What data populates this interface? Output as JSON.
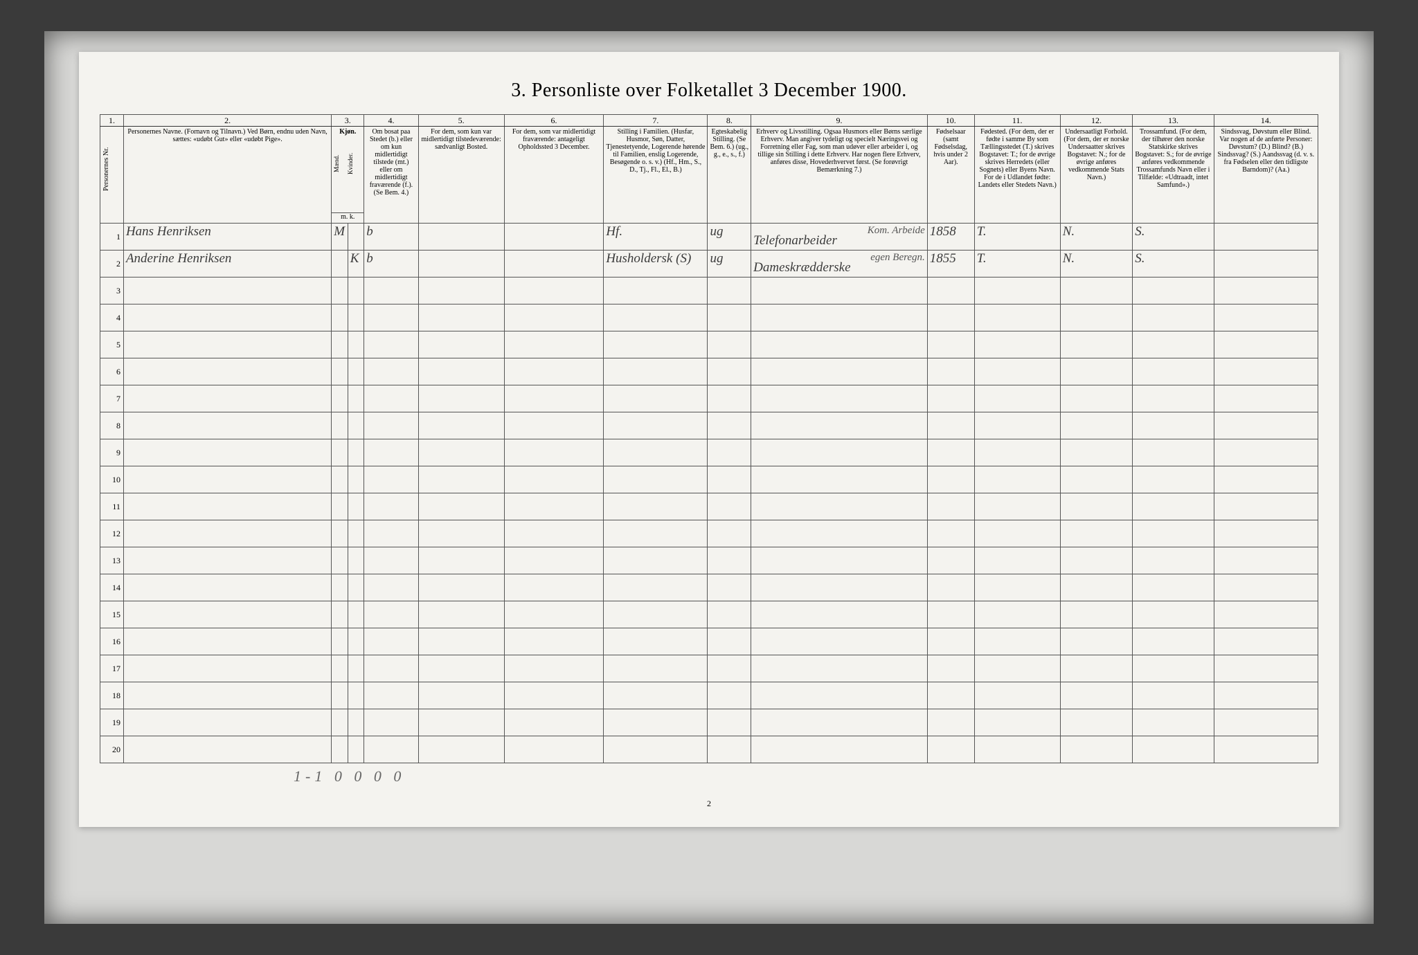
{
  "title": "3. Personliste over Folketallet 3 December 1900.",
  "columns": {
    "nums": [
      "1.",
      "2.",
      "3.",
      "4.",
      "5.",
      "6.",
      "7.",
      "8.",
      "9.",
      "10.",
      "11.",
      "12.",
      "13.",
      "14."
    ],
    "h1": "Personernes Nr.",
    "h2": "Personernes Navne.\n(Fornavn og Tilnavn.)\nVed Børn, endnu uden Navn, sættes: «udøbt Gut» eller «udøbt Pige».",
    "h3": "Kjøn.",
    "h3m": "Mænd.",
    "h3k": "Kvinder.",
    "h3mk": "m. k.",
    "h4": "Om bosat paa Stedet (b.) eller om kun midlertidigt tilstede (mt.) eller om midlertidigt fraværende (f.). (Se Bem. 4.)",
    "h5": "For dem, som kun var midlertidigt tilstedeværende:\nsædvanligt Bosted.",
    "h6": "For dem, som var midlertidigt fraværende:\nantageligt Opholdssted 3 December.",
    "h7": "Stilling i Familien.\n(Husfar, Husmor, Søn, Datter, Tjenestetyende, Logerende hørende til Familien, enslig Logerende, Besøgende o. s. v.)\n(Hf., Hm., S., D., Tj., Fl., El., B.)",
    "h8": "Egteskabelig Stilling.\n(Se Bem. 6.)\n(ug., g., e., s., f.)",
    "h9": "Erhverv og Livsstilling.\nOgsaa Husmors eller Børns særlige Erhverv. Man angiver tydeligt og specielt Næringsvei og Forretning eller Fag, som man udøver eller arbeider i, og tillige sin Stilling i dette Erhverv. Har nogen flere Erhverv, anføres disse, Hovederhvervet først.\n(Se forøvrigt Bemærkning 7.)",
    "h10": "Fødselsaar\n(samt Fødselsdag, hvis under 2 Aar).",
    "h11": "Fødested.\n(For dem, der er fødte i samme By som Tællingsstedet (T.) skrives Bogstavet: T.; for de øvrige skrives Herredets (eller Sognets) eller Byens Navn. For de i Udlandet fødte: Landets eller Stedets Navn.)",
    "h12": "Undersaatligt Forhold.\n(For dem, der er norske Undersaatter skrives Bogstavet: N.; for de øvrige anføres vedkommende Stats Navn.)",
    "h13": "Trossamfund.\n(For dem, der tilhører den norske Statskirke skrives Bogstavet: S.; for de øvrige anføres vedkommende Trossamfunds Navn eller i Tilfælde: «Udtraadt, intet Samfund».)",
    "h14": "Sindssvag, Døvstum eller Blind.\nVar nogen af de anførte Personer:\nDøvstum? (D.)\nBlind? (B.)\nSindssvag? (S.)\nAandssvag (d. v. s. fra Fødselen eller den tidligste Barndom)? (Aa.)"
  },
  "rows": [
    {
      "n": "1",
      "name": "Hans Henriksen",
      "sex_m": "M",
      "sex_k": "",
      "c4": "b",
      "c5": "",
      "c6": "",
      "c7": "Hf.",
      "c8": "ug",
      "c9": "Telefonarbeider",
      "c9sup": "Kom. Arbeide",
      "c10": "1858",
      "c11": "T.",
      "c12": "N.",
      "c13": "S.",
      "c14": ""
    },
    {
      "n": "2",
      "name": "Anderine Henriksen",
      "sex_m": "",
      "sex_k": "K",
      "c4": "b",
      "c5": "",
      "c6": "",
      "c7": "Husholdersk (S)",
      "c8": "ug",
      "c9": "Dameskrædderske",
      "c9sup": "egen Beregn.",
      "c10": "1855",
      "c11": "T.",
      "c12": "N.",
      "c13": "S.",
      "c14": ""
    }
  ],
  "empty_row_count": 18,
  "footer_tallies": "1-1   0 0     0 0",
  "footer_page": "2",
  "colors": {
    "page_bg": "#3a3a3a",
    "scan_bg": "#d8d8d6",
    "paper": "#f4f3ef",
    "rule": "#555555",
    "hand": "#3b3b3b"
  }
}
